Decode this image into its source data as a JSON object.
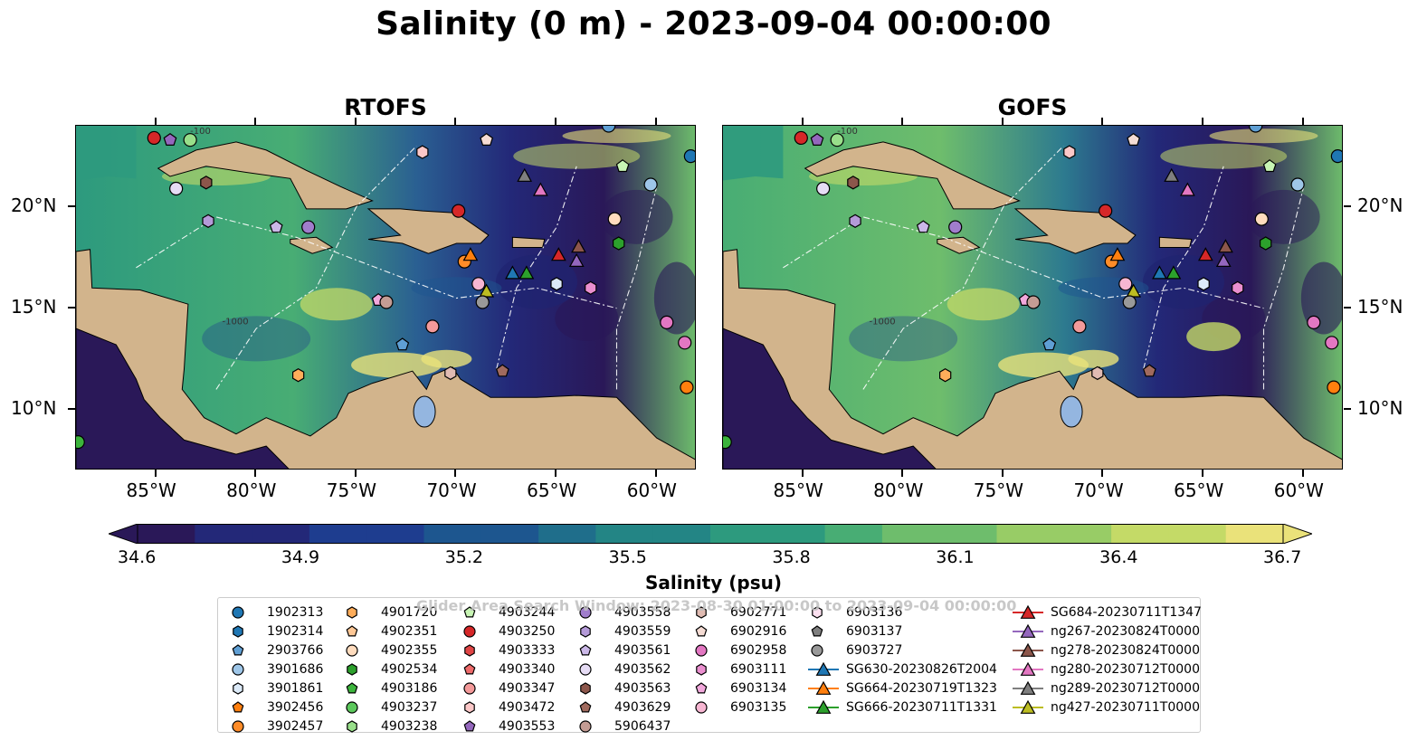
{
  "title": "Salinity (0 m) - 2023-09-04 00:00:00",
  "panels": [
    {
      "title": "RTOFS"
    },
    {
      "title": "GOFS"
    }
  ],
  "axes": {
    "lon_ticks": [
      "85°W",
      "80°W",
      "75°W",
      "70°W",
      "65°W",
      "60°W"
    ],
    "lat_ticks": [
      "20°N",
      "15°N",
      "10°N"
    ],
    "lon_range": [
      -89,
      -58
    ],
    "lat_range": [
      7,
      24
    ]
  },
  "colorbar": {
    "label": "Salinity (psu)",
    "ticks": [
      "34.6",
      "34.9",
      "35.2",
      "35.5",
      "35.8",
      "36.1",
      "36.4",
      "36.7"
    ],
    "range": [
      34.6,
      36.7
    ],
    "colors": [
      "#2a1858",
      "#232878",
      "#1e3d8f",
      "#1d568f",
      "#1f6e8b",
      "#238585",
      "#2d9a7e",
      "#48ad74",
      "#6ebd6c",
      "#98cc66",
      "#c4da67",
      "#eae27a"
    ]
  },
  "bathymetry_labels": [
    "-100",
    "-1000"
  ],
  "watermark": "Glider Area Search Window: 2023-08-30 01:00:00 to 2023-09-04 00:00:00",
  "land_color": "#d2b48c",
  "legend": {
    "columns": [
      [
        {
          "label": "1902313",
          "marker": "circle",
          "color": "#1f77b4"
        },
        {
          "label": "1902314",
          "marker": "hexagon",
          "color": "#1f77b4"
        },
        {
          "label": "2903766",
          "marker": "pentagon",
          "color": "#5f9fd4"
        },
        {
          "label": "3901686",
          "marker": "circle",
          "color": "#9ec6e8"
        },
        {
          "label": "3901861",
          "marker": "hexagon",
          "color": "#dceaf8"
        },
        {
          "label": "3902456",
          "marker": "pentagon",
          "color": "#ff7f0e"
        },
        {
          "label": "3902457",
          "marker": "circle",
          "color": "#ff8c28"
        }
      ],
      [
        {
          "label": "4901720",
          "marker": "hexagon",
          "color": "#ffad5a"
        },
        {
          "label": "4902351",
          "marker": "pentagon",
          "color": "#ffc896"
        },
        {
          "label": "4902355",
          "marker": "circle",
          "color": "#ffdcbe"
        },
        {
          "label": "4902534",
          "marker": "hexagon",
          "color": "#2ca02c"
        },
        {
          "label": "4903186",
          "marker": "pentagon",
          "color": "#3cb43c"
        },
        {
          "label": "4903237",
          "marker": "circle",
          "color": "#5cc85c"
        },
        {
          "label": "4903238",
          "marker": "hexagon",
          "color": "#98df8a"
        }
      ],
      [
        {
          "label": "4903244",
          "marker": "pentagon",
          "color": "#c8f5b4"
        },
        {
          "label": "4903250",
          "marker": "circle",
          "color": "#d62728"
        },
        {
          "label": "4903333",
          "marker": "hexagon",
          "color": "#e04545"
        },
        {
          "label": "4903340",
          "marker": "pentagon",
          "color": "#ee6a6a"
        },
        {
          "label": "4903347",
          "marker": "circle",
          "color": "#f49a9a"
        },
        {
          "label": "4903472",
          "marker": "hexagon",
          "color": "#fcc8c8"
        },
        {
          "label": "4903553",
          "marker": "pentagon",
          "color": "#9467bd"
        }
      ],
      [
        {
          "label": "4903558",
          "marker": "circle",
          "color": "#a07dcc"
        },
        {
          "label": "4903559",
          "marker": "hexagon",
          "color": "#b49ad8"
        },
        {
          "label": "4903561",
          "marker": "pentagon",
          "color": "#cbb8e8"
        },
        {
          "label": "4903562",
          "marker": "circle",
          "color": "#e6dcf5"
        },
        {
          "label": "4903563",
          "marker": "hexagon",
          "color": "#8c564b"
        },
        {
          "label": "4903629",
          "marker": "pentagon",
          "color": "#a06a5e"
        },
        {
          "label": "5906437",
          "marker": "circle",
          "color": "#c49c94"
        }
      ],
      [
        {
          "label": "6902771",
          "marker": "hexagon",
          "color": "#e0bbb2"
        },
        {
          "label": "6902916",
          "marker": "pentagon",
          "color": "#f5dcd4"
        },
        {
          "label": "6902958",
          "marker": "circle",
          "color": "#e377c2"
        },
        {
          "label": "6903111",
          "marker": "hexagon",
          "color": "#ea8fcf"
        },
        {
          "label": "6903134",
          "marker": "pentagon",
          "color": "#f2a8dc"
        },
        {
          "label": "6903135",
          "marker": "circle",
          "color": "#f7b6d2"
        }
      ],
      [
        {
          "label": "6903136",
          "marker": "hexagon",
          "color": "#fce0f0"
        },
        {
          "label": "6903137",
          "marker": "pentagon",
          "color": "#7f7f7f"
        },
        {
          "label": "6903727",
          "marker": "circle",
          "color": "#999999"
        },
        {
          "label": "SG630-20230826T2004",
          "marker": "triangle-line",
          "color": "#1f77b4"
        },
        {
          "label": "SG664-20230719T1323",
          "marker": "triangle-line",
          "color": "#ff7f0e"
        },
        {
          "label": "SG666-20230711T1331",
          "marker": "triangle-line",
          "color": "#2ca02c"
        }
      ],
      [
        {
          "label": "SG684-20230711T1347",
          "marker": "triangle-line",
          "color": "#d62728"
        },
        {
          "label": "ng267-20230824T0000",
          "marker": "triangle-line",
          "color": "#9467bd"
        },
        {
          "label": "ng278-20230824T0000",
          "marker": "triangle-line",
          "color": "#8c564b"
        },
        {
          "label": "ng280-20230712T0000",
          "marker": "triangle-line",
          "color": "#e377c2"
        },
        {
          "label": "ng289-20230712T0000",
          "marker": "triangle-line",
          "color": "#7f7f7f"
        },
        {
          "label": "ng427-20230711T0000",
          "marker": "triangle-line",
          "color": "#bcbd22"
        }
      ]
    ]
  },
  "map_markers": [
    {
      "id": "4903250",
      "marker": "circle",
      "color": "#d62728",
      "lon": -85.1,
      "lat": 23.4
    },
    {
      "id": "4903553",
      "marker": "pentagon",
      "color": "#9467bd",
      "lon": -84.3,
      "lat": 23.3
    },
    {
      "id": "4903238",
      "marker": "circle",
      "color": "#98df8a",
      "lon": -83.3,
      "lat": 23.3
    },
    {
      "id": "4902916",
      "marker": "hexagon",
      "color": "#fcc8c8",
      "lon": -71.7,
      "lat": 22.7
    },
    {
      "id": "6902916",
      "marker": "pentagon",
      "color": "#f5dcd4",
      "lon": -68.5,
      "lat": 23.3
    },
    {
      "id": "2903766",
      "marker": "circle",
      "color": "#5f9fd4",
      "lon": -62.4,
      "lat": 24.0
    },
    {
      "id": "1902313",
      "marker": "circle",
      "color": "#1f77b4",
      "lon": -58.3,
      "lat": 22.5
    },
    {
      "id": "4903244",
      "marker": "pentagon",
      "color": "#c8f5b4",
      "lon": -61.7,
      "lat": 22.0
    },
    {
      "id": "3901686",
      "marker": "circle",
      "color": "#9ec6e8",
      "lon": -60.3,
      "lat": 21.1
    },
    {
      "id": "4903562",
      "marker": "circle",
      "color": "#e6dcf5",
      "lon": -84.0,
      "lat": 20.9
    },
    {
      "id": "4903563",
      "marker": "hexagon",
      "color": "#8c564b",
      "lon": -82.5,
      "lat": 21.2
    },
    {
      "id": "4903559",
      "marker": "hexagon",
      "color": "#b49ad8",
      "lon": -82.4,
      "lat": 19.3
    },
    {
      "id": "4903561",
      "marker": "pentagon",
      "color": "#cbb8e8",
      "lon": -79.0,
      "lat": 19.0
    },
    {
      "id": "4903558",
      "marker": "circle",
      "color": "#a07dcc",
      "lon": -77.4,
      "lat": 19.0
    },
    {
      "id": "4903333",
      "marker": "circle",
      "color": "#d62728",
      "lon": -69.9,
      "lat": 19.8
    },
    {
      "id": "4902355",
      "marker": "circle",
      "color": "#ffdcbe",
      "lon": -62.1,
      "lat": 19.4
    },
    {
      "id": "4902534",
      "marker": "hexagon",
      "color": "#2ca02c",
      "lon": -61.9,
      "lat": 18.2
    },
    {
      "id": "ng267",
      "marker": "triangle",
      "color": "#7f7f7f",
      "lon": -66.6,
      "lat": 21.5
    },
    {
      "id": "ng280",
      "marker": "triangle",
      "color": "#e377c2",
      "lon": -65.8,
      "lat": 20.8
    },
    {
      "id": "3902457",
      "marker": "circle",
      "color": "#ff8c28",
      "lon": -69.6,
      "lat": 17.3
    },
    {
      "id": "SG664",
      "marker": "triangle",
      "color": "#ff7f0e",
      "lon": -69.3,
      "lat": 17.6
    },
    {
      "id": "SG684",
      "marker": "triangle",
      "color": "#d62728",
      "lon": -64.9,
      "lat": 17.6
    },
    {
      "id": "ng278",
      "marker": "triangle",
      "color": "#8c564b",
      "lon": -63.9,
      "lat": 18.0
    },
    {
      "id": "ng267b",
      "marker": "triangle",
      "color": "#9467bd",
      "lon": -64.0,
      "lat": 17.3
    },
    {
      "id": "SG630",
      "marker": "triangle",
      "color": "#1f77b4",
      "lon": -67.2,
      "lat": 16.7
    },
    {
      "id": "SG666",
      "marker": "triangle",
      "color": "#2ca02c",
      "lon": -66.5,
      "lat": 16.7
    },
    {
      "id": "ng427",
      "marker": "triangle",
      "color": "#bcbd22",
      "lon": -68.5,
      "lat": 15.8
    },
    {
      "id": "6903135",
      "marker": "circle",
      "color": "#f7b6d2",
      "lon": -68.9,
      "lat": 16.2
    },
    {
      "id": "6903727",
      "marker": "circle",
      "color": "#999999",
      "lon": -68.7,
      "lat": 15.3
    },
    {
      "id": "3901861",
      "marker": "hexagon",
      "color": "#dceaf8",
      "lon": -65.0,
      "lat": 16.2
    },
    {
      "id": "6903111",
      "marker": "hexagon",
      "color": "#ea8fcf",
      "lon": -63.3,
      "lat": 16.0
    },
    {
      "id": "6903134",
      "marker": "pentagon",
      "color": "#f2a8dc",
      "lon": -73.9,
      "lat": 15.4
    },
    {
      "id": "5906437",
      "marker": "circle",
      "color": "#c49c94",
      "lon": -73.5,
      "lat": 15.3
    },
    {
      "id": "4903347",
      "marker": "circle",
      "color": "#f49a9a",
      "lon": -71.2,
      "lat": 14.1
    },
    {
      "id": "2903766b",
      "marker": "pentagon",
      "color": "#5f9fd4",
      "lon": -72.7,
      "lat": 13.2
    },
    {
      "id": "6902958",
      "marker": "circle",
      "color": "#e377c2",
      "lon": -59.5,
      "lat": 14.3
    },
    {
      "id": "6902958b",
      "marker": "circle",
      "color": "#e377c2",
      "lon": -58.6,
      "lat": 13.3
    },
    {
      "id": "4901720",
      "marker": "hexagon",
      "color": "#ffad5a",
      "lon": -77.9,
      "lat": 11.7
    },
    {
      "id": "4903629",
      "marker": "pentagon",
      "color": "#a06a5e",
      "lon": -67.7,
      "lat": 11.9
    },
    {
      "id": "6902771",
      "marker": "hexagon",
      "color": "#e0bbb2",
      "lon": -70.3,
      "lat": 11.8
    },
    {
      "id": "3902456",
      "marker": "circle",
      "color": "#ff7f0e",
      "lon": -58.5,
      "lat": 11.1
    },
    {
      "id": "4903186",
      "marker": "circle",
      "color": "#3cb43c",
      "lon": -88.9,
      "lat": 8.4
    }
  ]
}
